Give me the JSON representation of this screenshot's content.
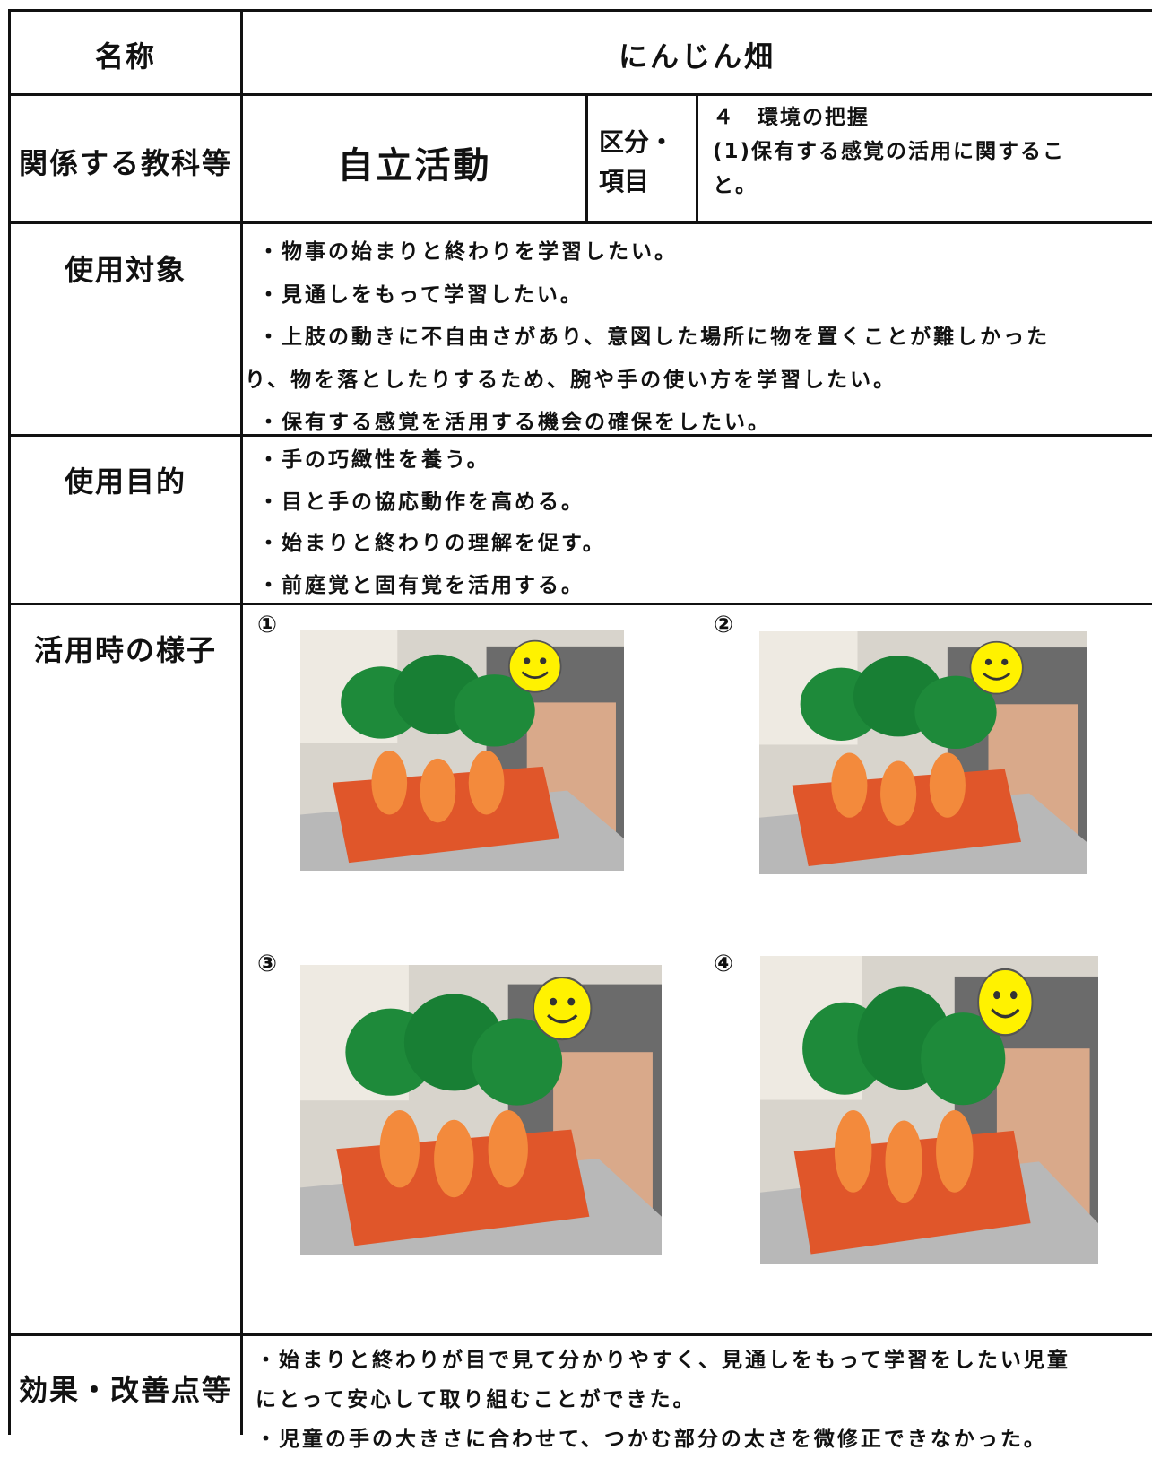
{
  "name": {
    "label": "名称",
    "value": "にんじん畑"
  },
  "subject": {
    "label": "関係する教科等",
    "value": "自立活動",
    "category_label": [
      "区分・",
      "項目"
    ],
    "category": [
      "４　環境の把握",
      "(1)保有する感覚の活用に関するこ",
      "と。"
    ]
  },
  "target": {
    "label": "使用対象",
    "lines": [
      "・物事の始まりと終わりを学習したい。",
      "・見通しをもって学習したい。",
      "・上肢の動きに不自由さがあり、意図した場所に物を置くことが難しかった",
      "り、物を落としたりするため、腕や手の使い方を学習したい。",
      "・保有する感覚を活用する機会の確保をしたい。"
    ]
  },
  "purpose": {
    "label": "使用目的",
    "lines": [
      "・手の巧緻性を養う。",
      "・目と手の協応動作を高める。",
      "・始まりと終わりの理解を促す。",
      "・前庭覚と固有覚を活用する。"
    ]
  },
  "usage": {
    "label": "活用時の様子",
    "photos": [
      "①",
      "②",
      "③",
      "④"
    ]
  },
  "effects": {
    "label": "効果・改善点等",
    "lines": [
      "・始まりと終わりが目で見て分かりやすく、見通しをもって学習をしたい児童",
      "にとって安心して取り組むことができた。",
      "・児童の手の大きさに合わせて、つかむ部分の太さを微修正できなかった。"
    ]
  }
}
